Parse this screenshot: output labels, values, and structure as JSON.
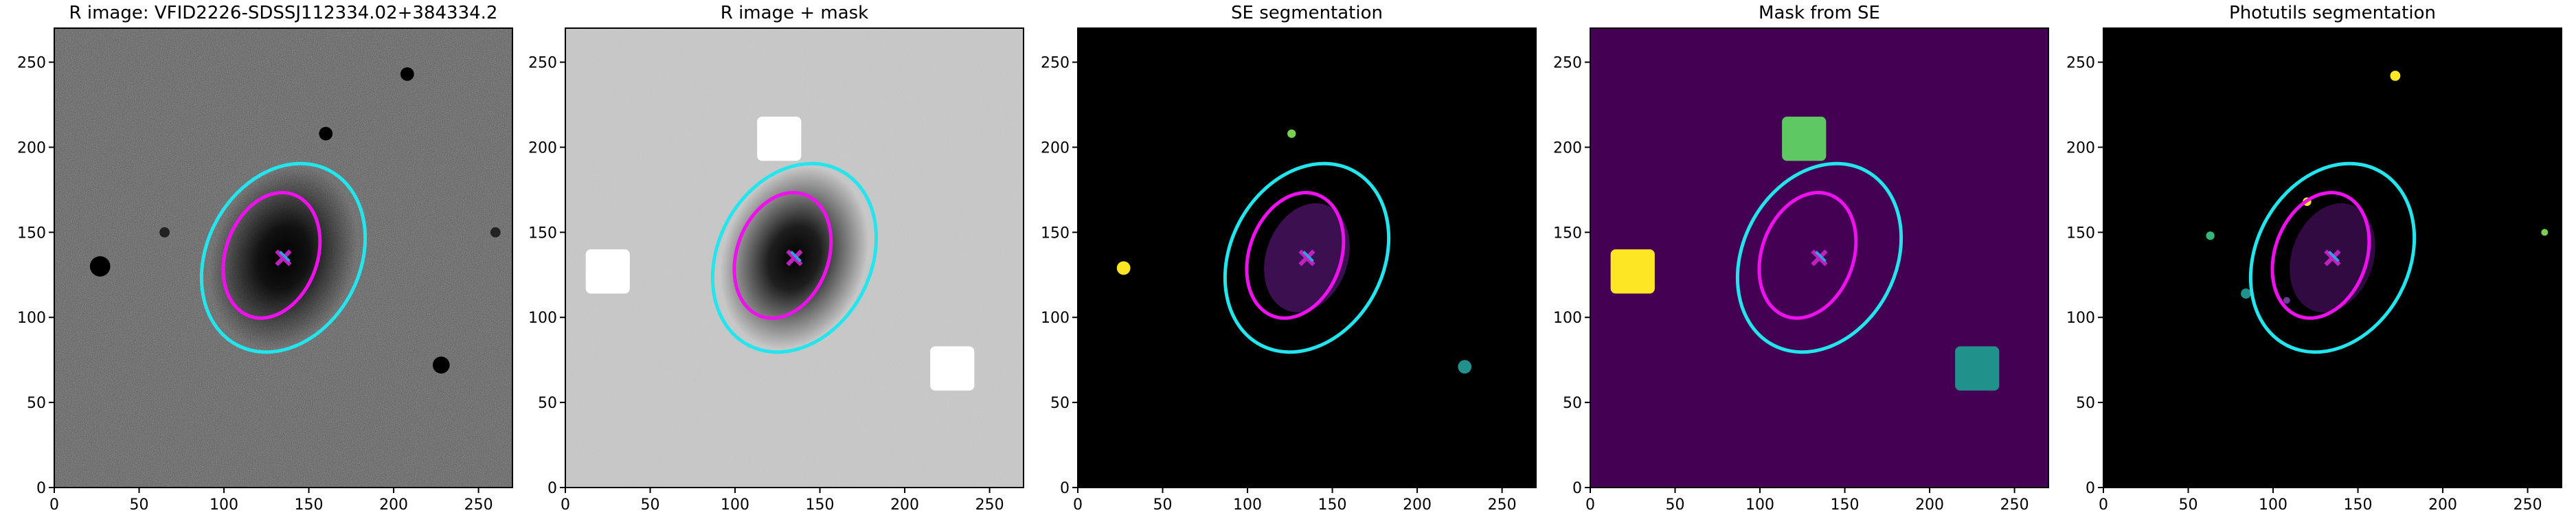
{
  "chart_data": [
    {
      "type": "image",
      "title": "R image: VFID2226-SDSSJ112334.02+384334.2",
      "background": "#5a5a5a",
      "xlim": [
        0,
        270
      ],
      "ylim": [
        0,
        270
      ],
      "xticks": [
        0,
        50,
        100,
        150,
        200,
        250
      ],
      "yticks": [
        0,
        50,
        100,
        150,
        200,
        250
      ]
    },
    {
      "type": "image",
      "title": "R image + mask",
      "background": "#c8c8c8",
      "xlim": [
        0,
        270
      ],
      "ylim": [
        0,
        270
      ],
      "xticks": [
        0,
        50,
        100,
        150,
        200,
        250
      ],
      "yticks": [
        0,
        50,
        100,
        150,
        200,
        250
      ]
    },
    {
      "type": "image",
      "title": "SE segmentation",
      "background": "#000000",
      "xlim": [
        0,
        270
      ],
      "ylim": [
        0,
        270
      ],
      "xticks": [
        0,
        50,
        100,
        150,
        200,
        250
      ],
      "yticks": [
        0,
        50,
        100,
        150,
        200,
        250
      ]
    },
    {
      "type": "image",
      "title": "Mask from SE",
      "background": "#440154",
      "xlim": [
        0,
        270
      ],
      "ylim": [
        0,
        270
      ],
      "xticks": [
        0,
        50,
        100,
        150,
        200,
        250
      ],
      "yticks": [
        0,
        50,
        100,
        150,
        200,
        250
      ]
    },
    {
      "type": "image",
      "title": "Photutils segmentation",
      "background": "#000000",
      "xlim": [
        0,
        270
      ],
      "ylim": [
        0,
        270
      ],
      "xticks": [
        0,
        50,
        100,
        150,
        200,
        250
      ],
      "yticks": [
        0,
        50,
        100,
        150,
        200,
        250
      ]
    }
  ]
}
